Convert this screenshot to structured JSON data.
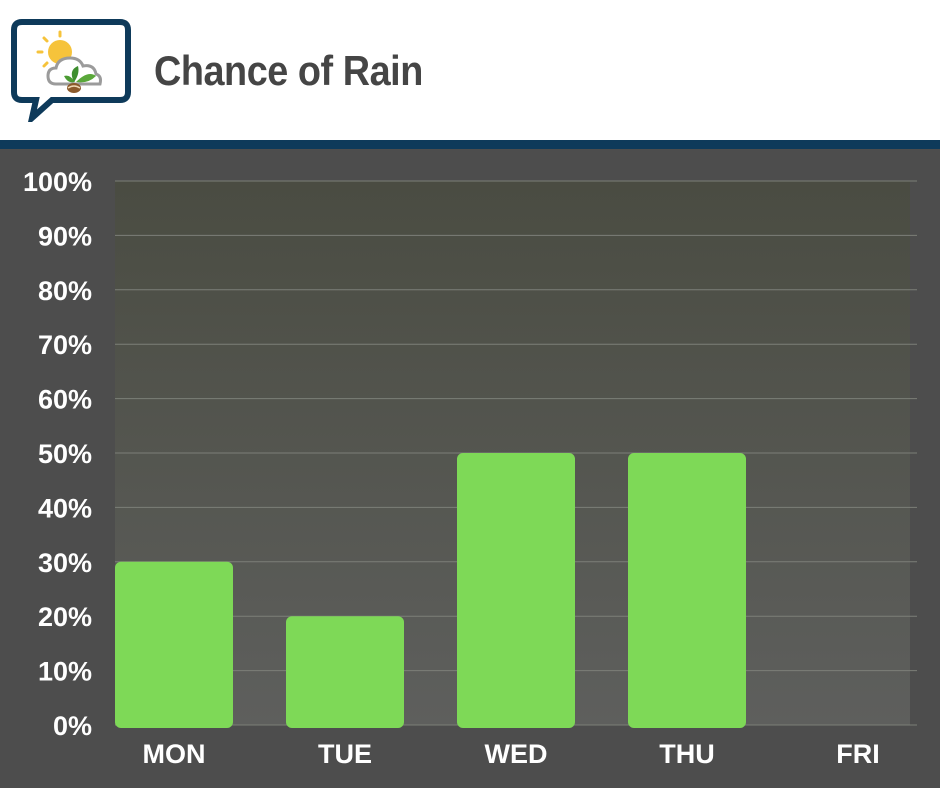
{
  "header": {
    "title": "Chance of Rain"
  },
  "colors": {
    "bar": "#7ed957",
    "background": "#4d4d4d",
    "rule": "#0e3a5a",
    "plot_top": "#4a4c42",
    "plot_bottom": "#5e5f5d",
    "grid": "#7c7f78"
  },
  "icons": {
    "logo": "weather-bubble-logo-icon"
  },
  "chart_data": {
    "type": "bar",
    "title": "Chance of Rain",
    "categories": [
      "MON",
      "TUE",
      "WED",
      "THU",
      "FRI"
    ],
    "values": [
      30,
      20,
      50,
      50,
      0
    ],
    "ylim": [
      0,
      100
    ],
    "yticks": [
      "0%",
      "10%",
      "20%",
      "30%",
      "40%",
      "50%",
      "60%",
      "70%",
      "80%",
      "90%",
      "100%"
    ],
    "xlabel": "",
    "ylabel": "",
    "grid": true,
    "legend": "none"
  }
}
